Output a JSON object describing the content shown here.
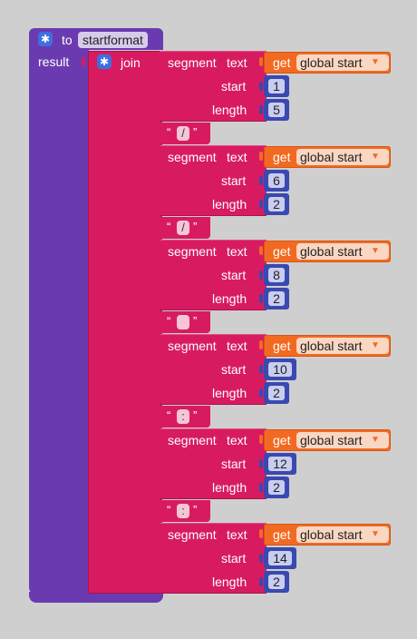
{
  "procedure": {
    "keyword": "to",
    "name": "startformat",
    "result_label": "result",
    "icon": "gear-icon"
  },
  "join": {
    "label": "join",
    "icon": "gear-icon"
  },
  "segment_labels": {
    "segment": "segment",
    "text": "text",
    "start": "start",
    "length": "length"
  },
  "get_block": {
    "keyword": "get",
    "variable": "global start",
    "dropdown_icon": "caret-down-icon"
  },
  "segments": [
    {
      "start": "1",
      "length": "5"
    },
    {
      "start": "6",
      "length": "2"
    },
    {
      "start": "8",
      "length": "2"
    },
    {
      "start": "10",
      "length": "2"
    },
    {
      "start": "12",
      "length": "2"
    },
    {
      "start": "14",
      "length": "2"
    }
  ],
  "separators": [
    "/",
    "/",
    " ",
    ":",
    ":"
  ],
  "quote_open": "“",
  "quote_close": "”",
  "colors": {
    "procedure": "#6a3bb0",
    "text_block": "#d81b60",
    "variable_get": "#f26a21",
    "math_number": "#3a49b0"
  }
}
